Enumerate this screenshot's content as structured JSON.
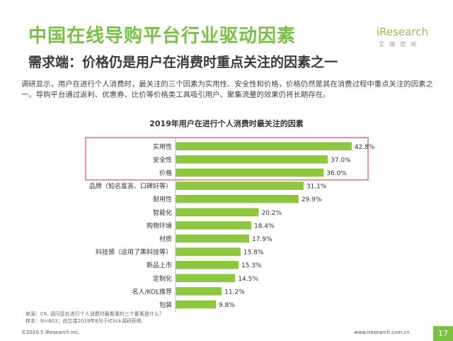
{
  "header": {
    "title": "中国在线导购平台行业驱动因素",
    "subtitle": "需求端：价格仍是用户在消费时重点关注的因素之一",
    "logo_main": "iResearch",
    "logo_sub": "艾瑞咨询"
  },
  "intro": "调研显示，用户在进行个人消费时，最关注的三个因素为实用性、安全性和价格，价格仍然是其在消费过程中重点关注的因素之一。导购平台通过返利、优惠券、比价等价格类工具吸引用户、聚集流量的效果仍将长期存在。",
  "colors": {
    "accent": "#7ac143",
    "bar": "#8dc63f",
    "highlight_border": "#e15b64"
  },
  "chart_data": {
    "type": "bar",
    "orientation": "horizontal",
    "title": "2019年用户在进行个人消费时最关注的因素",
    "categories": [
      "实用性",
      "安全性",
      "价格",
      "品牌（知名度高、口碑好等）",
      "耐用性",
      "智能化",
      "购物环境",
      "材质",
      "科技感（运用了黑科技等）",
      "新品上市",
      "定制化",
      "名人/KOL推荐",
      "包装"
    ],
    "values": [
      42.8,
      37.0,
      36.0,
      31.1,
      29.9,
      20.2,
      18.4,
      17.9,
      15.8,
      15.3,
      14.5,
      11.2,
      9.8
    ],
    "value_labels": [
      "42.8%",
      "37.0%",
      "36.0%",
      "31.1%",
      "29.9%",
      "20.2%",
      "18.4%",
      "17.9%",
      "15.8%",
      "15.3%",
      "14.5%",
      "11.2%",
      "9.8%"
    ],
    "highlighted_categories": [
      "实用性",
      "安全性",
      "价格"
    ],
    "xlabel": "",
    "ylabel": "",
    "grid": false
  },
  "notes": {
    "source": "来源：C6. 请问您在进行个人消费时最看重的三个要素是什么？",
    "sample": "样本：N=803；由艾瑞2019年8月于iClick调研获得。"
  },
  "footer": {
    "copyright": "©2020.5 iResearch Inc.",
    "website": "www.iresearch.com.cn",
    "page": "17"
  }
}
